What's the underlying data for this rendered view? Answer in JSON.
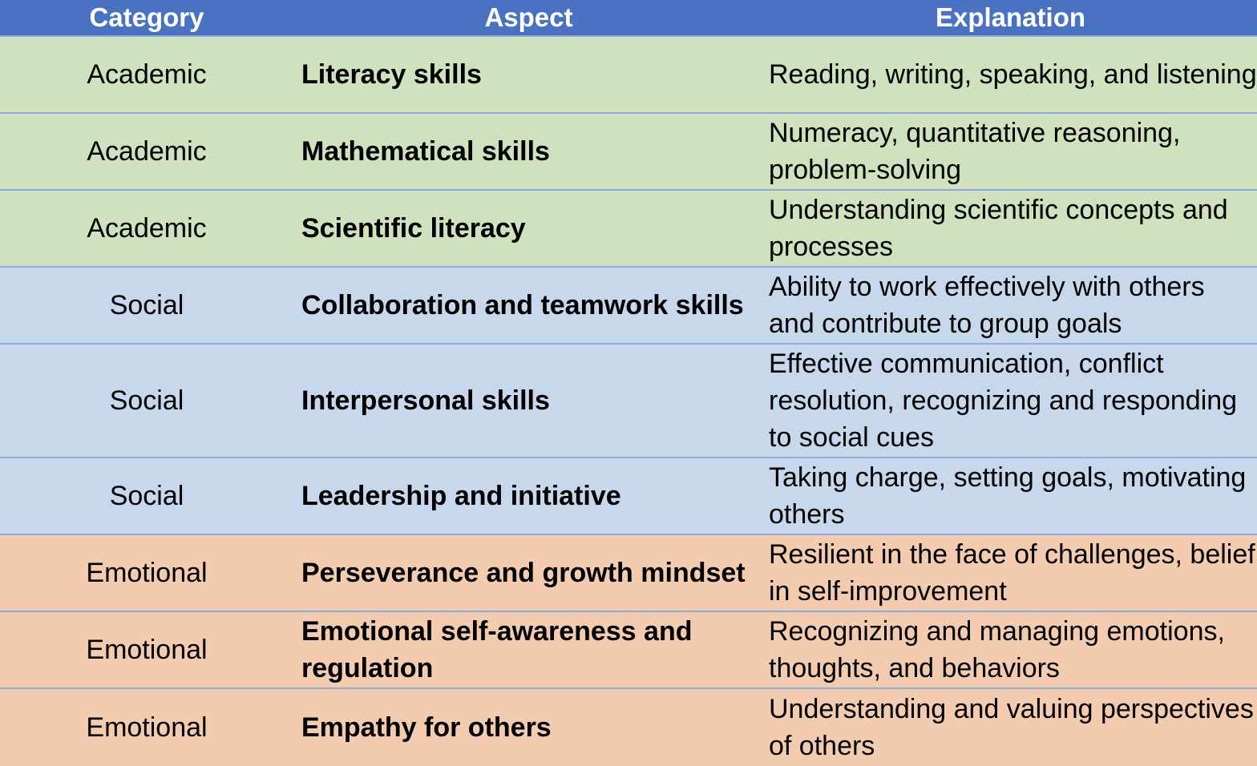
{
  "table": {
    "headers": [
      "Category",
      "Aspect",
      "Explanation"
    ],
    "rows": [
      {
        "category": "Academic",
        "aspect": "Literacy skills",
        "explanation": "Reading, writing, speaking, and listening",
        "group": "academic"
      },
      {
        "category": "Academic",
        "aspect": "Mathematical skills",
        "explanation": "Numeracy, quantitative reasoning, problem-solving",
        "group": "academic"
      },
      {
        "category": "Academic",
        "aspect": "Scientific literacy",
        "explanation": "Understanding scientific concepts and processes",
        "group": "academic"
      },
      {
        "category": "Social",
        "aspect": "Collaboration and teamwork skills",
        "explanation": "Ability to work effectively with others and contribute to group goals",
        "group": "social"
      },
      {
        "category": "Social",
        "aspect": "Interpersonal skills",
        "explanation": "Effective communication, conflict resolution, recognizing and responding to social cues",
        "group": "social"
      },
      {
        "category": "Social",
        "aspect": "Leadership and initiative",
        "explanation": "Taking charge, setting goals, motivating others",
        "group": "social"
      },
      {
        "category": "Emotional",
        "aspect": "Perseverance and growth mindset",
        "explanation": "Resilient in the face of challenges, belief in self-improvement",
        "group": "emotional"
      },
      {
        "category": "Emotional",
        "aspect": "Emotional self-awareness and regulation",
        "explanation": "Recognizing and managing emotions, thoughts, and behaviors",
        "group": "emotional"
      },
      {
        "category": "Emotional",
        "aspect": "Empathy for others",
        "explanation": "Understanding and valuing perspectives of others",
        "group": "emotional"
      }
    ]
  },
  "colors": {
    "header": "#4a72c2",
    "academic": "#cfe1bd",
    "social": "#c7d7ec",
    "emotional": "#f3ccb0",
    "rule": "#8ea9db"
  }
}
